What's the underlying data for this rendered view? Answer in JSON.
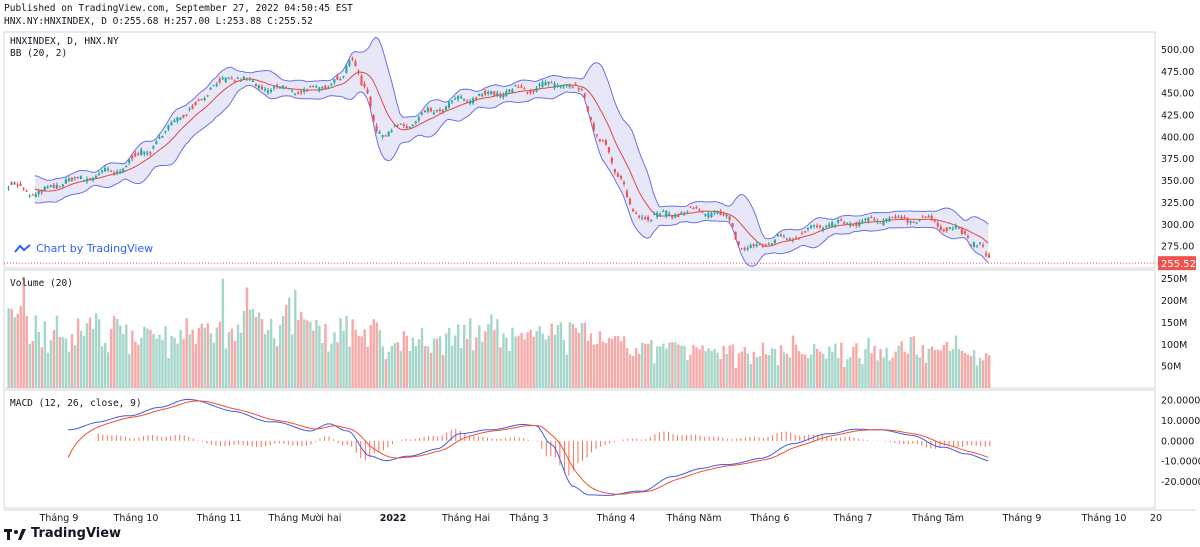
{
  "header": {
    "published": "Published on TradingView.com, September 27, 2022 04:50:45 EST",
    "symbol_line": "HNX.NY:HNXINDEX, D O:255.68 H:257.00 L:253.88 C:255.52"
  },
  "legends": {
    "main_symbol": "HNXINDEX, D, HNX.NY",
    "bb": "BB (20, 2)",
    "volume": "Volume (20)",
    "macd": "MACD (12, 26, close, 9)"
  },
  "link_text": "Chart by TradingView",
  "brand": "TradingView",
  "last_price_label": "255.52",
  "colors": {
    "up": "#26a69a",
    "down": "#ef5350",
    "vol_up": "#a5d6c9",
    "vol_down": "#f7a9a8",
    "bb_band": "#6a70e8",
    "bb_basis": "#e04848",
    "bb_fill": "#e0dff5",
    "macd_line": "#3f5ee0",
    "signal_line": "#f05030",
    "price_line": "#ef5350"
  },
  "chart_data": {
    "type": "candlestick",
    "x_tick_labels": [
      "Tháng 9",
      "Tháng 10",
      "Tháng 11",
      "Tháng Mười hai",
      "2022",
      "Tháng Hai",
      "Tháng 3",
      "Tháng 4",
      "Tháng Năm",
      "Tháng 6",
      "Tháng 7",
      "Tháng Tám",
      "Tháng 9",
      "Tháng 10",
      "20"
    ],
    "price_axis": {
      "ylim": [
        250,
        520
      ],
      "ticks": [
        "500.00",
        "475.00",
        "450.00",
        "425.00",
        "400.00",
        "375.00",
        "350.00",
        "325.00",
        "300.00",
        "275.00",
        "250.00"
      ]
    },
    "volume_axis": {
      "ylim": [
        0,
        270
      ],
      "ticks": [
        "250M",
        "200M",
        "150M",
        "100M",
        "50M"
      ]
    },
    "macd_axis": {
      "ylim": [
        -33,
        25
      ],
      "ticks": [
        "20.0000",
        "10.0000",
        "0.0000",
        "-10.0000",
        "-20.0000"
      ]
    },
    "anchors": [
      [
        0,
        345
      ],
      [
        18,
        335
      ],
      [
        40,
        350
      ],
      [
        70,
        360
      ],
      [
        92,
        385
      ],
      [
        115,
        425
      ],
      [
        140,
        462
      ],
      [
        152,
        468
      ],
      [
        170,
        455
      ],
      [
        185,
        455
      ],
      [
        197,
        452
      ],
      [
        220,
        465
      ],
      [
        228,
        492
      ],
      [
        236,
        455
      ],
      [
        245,
        405
      ],
      [
        260,
        410
      ],
      [
        280,
        428
      ],
      [
        300,
        442
      ],
      [
        322,
        450
      ],
      [
        345,
        455
      ],
      [
        362,
        460
      ],
      [
        378,
        455
      ],
      [
        393,
        395
      ],
      [
        405,
        355
      ],
      [
        415,
        310
      ],
      [
        430,
        310
      ],
      [
        455,
        315
      ],
      [
        475,
        310
      ],
      [
        488,
        270
      ],
      [
        500,
        278
      ],
      [
        515,
        285
      ],
      [
        540,
        298
      ],
      [
        562,
        302
      ],
      [
        587,
        306
      ],
      [
        605,
        306
      ],
      [
        628,
        294
      ],
      [
        642,
        278
      ],
      [
        652,
        256
      ]
    ],
    "volume_anchors": [
      [
        0,
        150
      ],
      [
        20,
        140
      ],
      [
        40,
        125
      ],
      [
        60,
        135
      ],
      [
        80,
        125
      ],
      [
        100,
        110
      ],
      [
        120,
        115
      ],
      [
        140,
        120
      ],
      [
        160,
        140
      ],
      [
        175,
        135
      ],
      [
        190,
        175
      ],
      [
        205,
        130
      ],
      [
        220,
        135
      ],
      [
        240,
        125
      ],
      [
        260,
        90
      ],
      [
        280,
        110
      ],
      [
        300,
        120
      ],
      [
        320,
        130
      ],
      [
        340,
        110
      ],
      [
        360,
        115
      ],
      [
        380,
        120
      ],
      [
        400,
        95
      ],
      [
        420,
        85
      ],
      [
        440,
        85
      ],
      [
        460,
        75
      ],
      [
        480,
        80
      ],
      [
        500,
        80
      ],
      [
        520,
        80
      ],
      [
        540,
        80
      ],
      [
        560,
        80
      ],
      [
        580,
        82
      ],
      [
        600,
        90
      ],
      [
        620,
        85
      ],
      [
        640,
        75
      ],
      [
        652,
        70
      ]
    ],
    "volume_spikes": [
      [
        11,
        255
      ],
      [
        118,
        160
      ],
      [
        143,
        250
      ],
      [
        158,
        230
      ],
      [
        220,
        160
      ],
      [
        245,
        150
      ],
      [
        262,
        130
      ],
      [
        330,
        115
      ],
      [
        520,
        120
      ],
      [
        570,
        115
      ],
      [
        600,
        118
      ],
      [
        628,
        120
      ]
    ],
    "macd_anchors": [
      [
        40,
        6
      ],
      [
        60,
        9
      ],
      [
        80,
        12
      ],
      [
        100,
        17
      ],
      [
        118,
        20
      ],
      [
        150,
        15
      ],
      [
        175,
        9
      ],
      [
        200,
        5
      ],
      [
        213,
        9
      ],
      [
        225,
        5
      ],
      [
        240,
        -8
      ],
      [
        250,
        -10
      ],
      [
        265,
        -7
      ],
      [
        285,
        -4
      ],
      [
        300,
        3
      ],
      [
        320,
        6
      ],
      [
        340,
        8
      ],
      [
        350,
        7
      ],
      [
        360,
        -2
      ],
      [
        375,
        -22
      ],
      [
        385,
        -26
      ],
      [
        400,
        -27
      ],
      [
        420,
        -25
      ],
      [
        440,
        -17
      ],
      [
        460,
        -14
      ],
      [
        475,
        -12
      ],
      [
        500,
        -8
      ],
      [
        520,
        -2
      ],
      [
        545,
        4
      ],
      [
        560,
        6
      ],
      [
        575,
        5
      ],
      [
        600,
        3
      ],
      [
        620,
        -3
      ],
      [
        635,
        -7
      ],
      [
        652,
        -10
      ]
    ],
    "candle_count": 652,
    "last_close": 255.52
  }
}
